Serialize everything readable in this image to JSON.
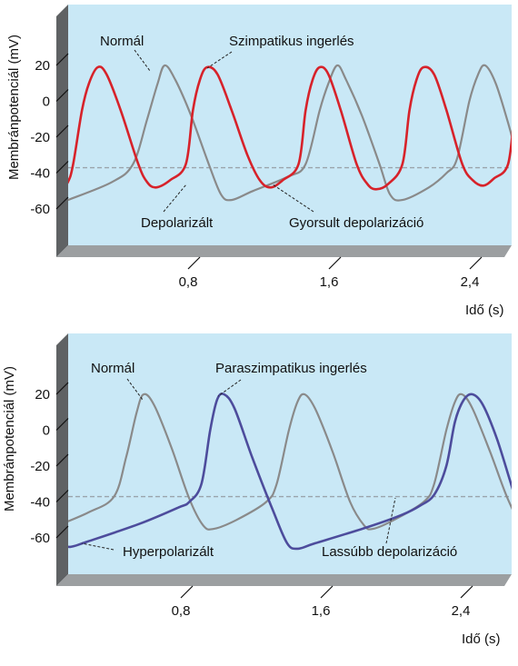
{
  "colors": {
    "panel_bg": "#c9e8f6",
    "frame_dark": "#5f6264",
    "frame_light": "#9c9fa1",
    "threshold": "#9aa3ab",
    "normal": "#8a8a8a",
    "sympathetic": "#d7222a",
    "parasympathetic": "#4d4c9c"
  },
  "chart_data": [
    {
      "type": "line",
      "ylabel": "Membránpotenciál (mV)",
      "xlabel": "Idő (s)",
      "ylim": [
        -73,
        33
      ],
      "xlim": [
        -0.07,
        2.6
      ],
      "yticks": [
        20,
        0,
        -20,
        -40,
        -60
      ],
      "ytick_labels": [
        "20",
        "0",
        "-20",
        "-40",
        "-60"
      ],
      "xticks": [
        0.8,
        1.6,
        2.4
      ],
      "xtick_labels": [
        "0,8",
        "1,6",
        "2,4"
      ],
      "threshold": -37,
      "annotations": {
        "normal": "Normál",
        "stim": "Szimpatikus ingerlés",
        "depol": "Depolarizált",
        "fast": "Gyorsult depolarizáció"
      },
      "series": [
        {
          "key": "normal",
          "points": [
            [
              0.05,
              -55
            ],
            [
              0.3,
              -45
            ],
            [
              0.42,
              -35
            ],
            [
              0.5,
              -10
            ],
            [
              0.56,
              10
            ],
            [
              0.6,
              20
            ],
            [
              0.66,
              12
            ],
            [
              0.75,
              -8
            ],
            [
              0.85,
              -35
            ],
            [
              0.92,
              -52
            ],
            [
              0.98,
              -55
            ],
            [
              1.1,
              -50
            ],
            [
              1.3,
              -42
            ],
            [
              1.4,
              -35
            ],
            [
              1.48,
              -5
            ],
            [
              1.53,
              10
            ],
            [
              1.58,
              20
            ],
            [
              1.63,
              12
            ],
            [
              1.72,
              -8
            ],
            [
              1.82,
              -35
            ],
            [
              1.88,
              -52
            ],
            [
              1.95,
              -55
            ],
            [
              2.1,
              -48
            ],
            [
              2.2,
              -40
            ],
            [
              2.26,
              -32
            ],
            [
              2.33,
              0
            ],
            [
              2.38,
              15
            ],
            [
              2.42,
              20
            ],
            [
              2.48,
              10
            ],
            [
              2.55,
              -12
            ],
            [
              2.63,
              -40
            ],
            [
              2.7,
              -54
            ],
            [
              2.75,
              -55
            ],
            [
              2.84,
              -51
            ]
          ]
        },
        {
          "key": "sympathetic",
          "points": [
            [
              -0.07,
              -53
            ],
            [
              0.0,
              -51
            ],
            [
              0.05,
              -45
            ],
            [
              0.08,
              -35
            ],
            [
              0.13,
              -5
            ],
            [
              0.17,
              10
            ],
            [
              0.22,
              19
            ],
            [
              0.27,
              15
            ],
            [
              0.35,
              -5
            ],
            [
              0.45,
              -35
            ],
            [
              0.5,
              -45
            ],
            [
              0.55,
              -48
            ],
            [
              0.63,
              -44
            ],
            [
              0.72,
              -35
            ],
            [
              0.76,
              -5
            ],
            [
              0.8,
              12
            ],
            [
              0.84,
              19
            ],
            [
              0.9,
              15
            ],
            [
              0.98,
              -5
            ],
            [
              1.07,
              -30
            ],
            [
              1.14,
              -44
            ],
            [
              1.2,
              -48
            ],
            [
              1.27,
              -44
            ],
            [
              1.36,
              -35
            ],
            [
              1.4,
              -5
            ],
            [
              1.44,
              12
            ],
            [
              1.48,
              19
            ],
            [
              1.53,
              15
            ],
            [
              1.6,
              -5
            ],
            [
              1.69,
              -35
            ],
            [
              1.75,
              -46
            ],
            [
              1.8,
              -49
            ],
            [
              1.87,
              -46
            ],
            [
              1.95,
              -35
            ],
            [
              1.99,
              -5
            ],
            [
              2.03,
              12
            ],
            [
              2.07,
              19
            ],
            [
              2.13,
              15
            ],
            [
              2.2,
              -5
            ],
            [
              2.29,
              -35
            ],
            [
              2.35,
              -44
            ],
            [
              2.41,
              -47
            ],
            [
              2.47,
              -43
            ],
            [
              2.55,
              -35
            ],
            [
              2.59,
              -5
            ],
            [
              2.63,
              12
            ],
            [
              2.67,
              19
            ],
            [
              2.72,
              15
            ],
            [
              2.8,
              5
            ]
          ]
        }
      ]
    },
    {
      "type": "line",
      "ylabel": "Membránpotenciál (mV)",
      "xlabel": "Idő (s)",
      "ylim": [
        -73,
        33
      ],
      "xlim": [
        -0.07,
        2.6
      ],
      "yticks": [
        20,
        0,
        -20,
        -40,
        -60
      ],
      "ytick_labels": [
        "20",
        "0",
        "-20",
        "-40",
        "-60"
      ],
      "xticks": [
        0.8,
        1.6,
        2.4
      ],
      "xtick_labels": [
        "0,8",
        "1,6",
        "2,4"
      ],
      "threshold": -37,
      "annotations": {
        "normal": "Normál",
        "stim": "Paraszimpatikus ingerlés",
        "depol": "Hyperpolarizált",
        "fast": "Lassúbb depolarizáció"
      },
      "series": [
        {
          "key": "normal",
          "points": [
            [
              -0.02,
              -55
            ],
            [
              0.2,
              -46
            ],
            [
              0.35,
              -37
            ],
            [
              0.42,
              -15
            ],
            [
              0.48,
              10
            ],
            [
              0.52,
              20
            ],
            [
              0.58,
              14
            ],
            [
              0.68,
              -10
            ],
            [
              0.78,
              -38
            ],
            [
              0.86,
              -53
            ],
            [
              0.92,
              -55
            ],
            [
              1.05,
              -50
            ],
            [
              1.22,
              -40
            ],
            [
              1.28,
              -30
            ],
            [
              1.35,
              0
            ],
            [
              1.4,
              16
            ],
            [
              1.44,
              20
            ],
            [
              1.5,
              12
            ],
            [
              1.6,
              -12
            ],
            [
              1.7,
              -40
            ],
            [
              1.78,
              -53
            ],
            [
              1.83,
              -55
            ],
            [
              1.95,
              -50
            ],
            [
              2.12,
              -40
            ],
            [
              2.18,
              -30
            ],
            [
              2.25,
              0
            ],
            [
              2.3,
              16
            ],
            [
              2.34,
              20
            ],
            [
              2.4,
              12
            ],
            [
              2.5,
              -12
            ],
            [
              2.6,
              -38
            ],
            [
              2.68,
              -53
            ],
            [
              2.73,
              -56
            ],
            [
              2.8,
              -52
            ]
          ]
        },
        {
          "key": "parasympathetic",
          "points": [
            [
              -0.02,
              -58
            ],
            [
              0.05,
              -63
            ],
            [
              0.1,
              -65
            ],
            [
              0.2,
              -62
            ],
            [
              0.5,
              -52
            ],
            [
              0.72,
              -43
            ],
            [
              0.78,
              -40
            ],
            [
              0.85,
              -30
            ],
            [
              0.9,
              0
            ],
            [
              0.94,
              17
            ],
            [
              0.98,
              20
            ],
            [
              1.04,
              12
            ],
            [
              1.14,
              -15
            ],
            [
              1.26,
              -45
            ],
            [
              1.34,
              -63
            ],
            [
              1.4,
              -66
            ],
            [
              1.5,
              -63
            ],
            [
              1.8,
              -54
            ],
            [
              2.0,
              -47
            ],
            [
              2.1,
              -42
            ],
            [
              2.18,
              -36
            ],
            [
              2.25,
              -20
            ],
            [
              2.3,
              5
            ],
            [
              2.35,
              17
            ],
            [
              2.4,
              20
            ],
            [
              2.46,
              14
            ],
            [
              2.54,
              -5
            ],
            [
              2.62,
              -30
            ],
            [
              2.7,
              -55
            ],
            [
              2.76,
              -64
            ],
            [
              2.81,
              -66
            ]
          ]
        }
      ]
    }
  ]
}
